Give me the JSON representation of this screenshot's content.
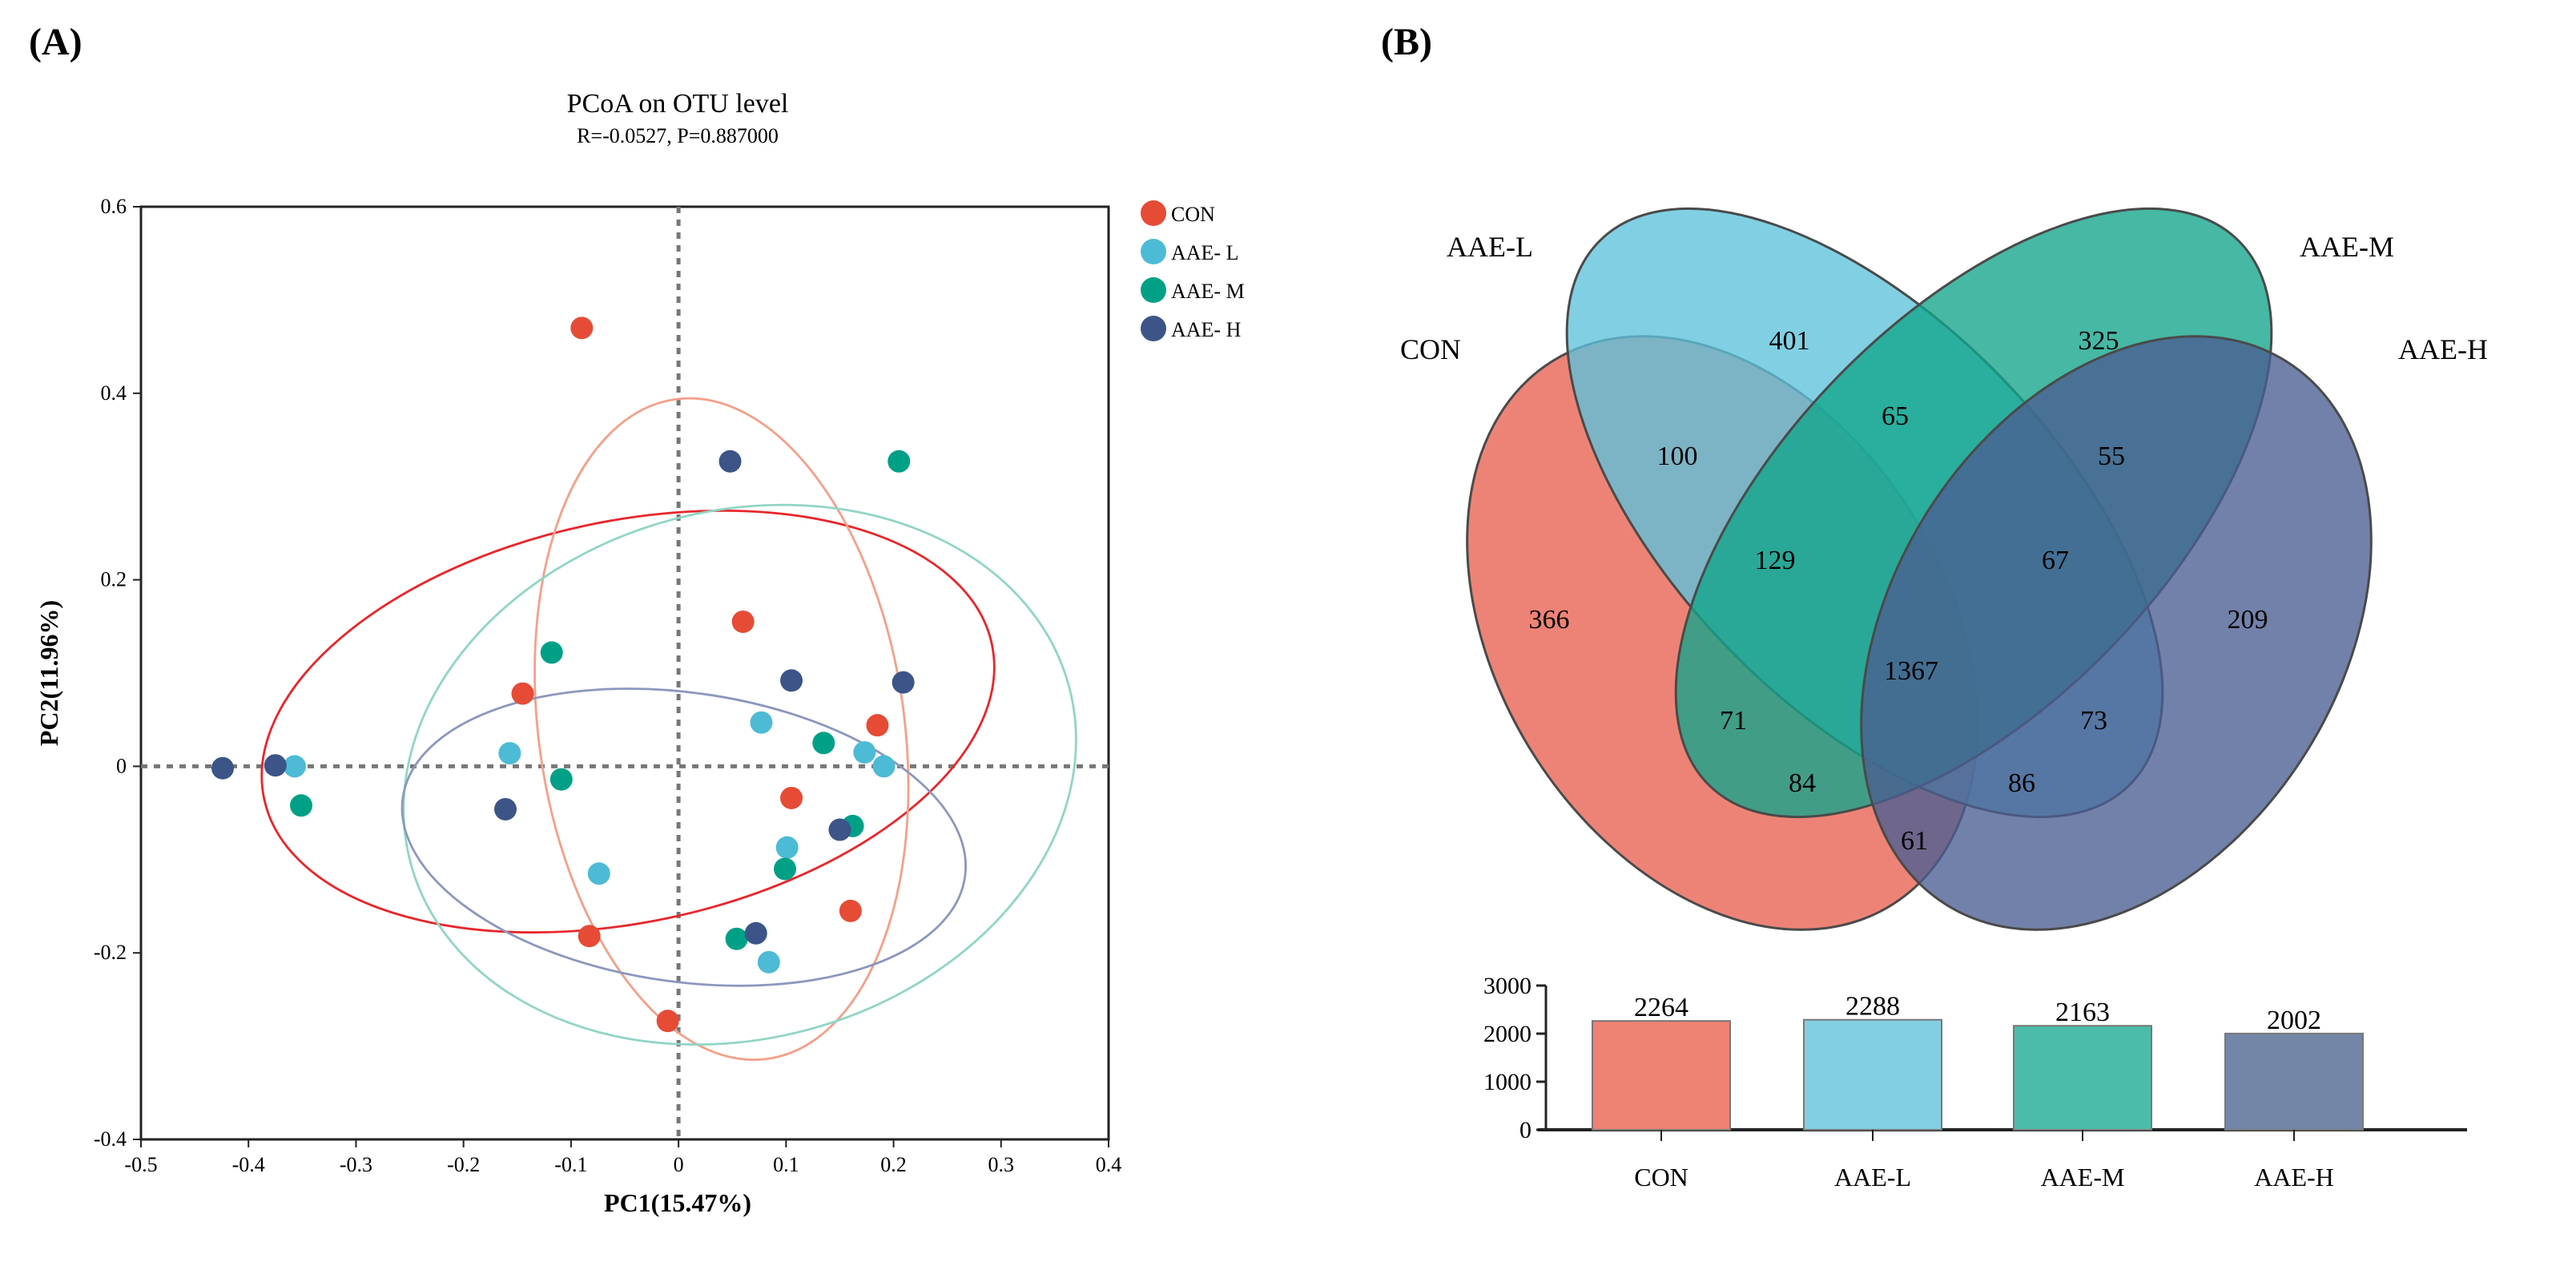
{
  "chart_data": [
    {
      "type": "scatter",
      "panel_label": "(A)",
      "title": "PCoA on OTU level",
      "subtitle": "R=-0.0527, P=0.887000",
      "xlabel": "PC1(15.47%)",
      "ylabel": "PC2(11.96%)",
      "xlim": [
        -0.5,
        0.4
      ],
      "ylim": [
        -0.4,
        0.6
      ],
      "xticks": [
        "-0.5",
        "-0.4",
        "-0.3",
        "-0.2",
        "-0.1",
        "0",
        "0.1",
        "0.2",
        "0.3",
        "0.4"
      ],
      "xtick_values": [
        -0.5,
        -0.4,
        -0.3,
        -0.2,
        -0.1,
        0,
        0.1,
        0.2,
        0.3,
        0.4
      ],
      "yticks": [
        "-0.4",
        "-0.2",
        "0",
        "0.2",
        "0.4",
        "0.6"
      ],
      "ytick_values": [
        -0.4,
        -0.2,
        0,
        0.2,
        0.4,
        0.6
      ],
      "legend_position": "right",
      "series": [
        {
          "name": "CON",
          "color": "#e64b35",
          "points": [
            [
              -0.09,
              0.47
            ],
            [
              0.06,
              0.155
            ],
            [
              -0.145,
              0.078
            ],
            [
              0.185,
              0.044
            ],
            [
              0.105,
              -0.034
            ],
            [
              0.16,
              -0.155
            ],
            [
              -0.083,
              -0.182
            ],
            [
              -0.01,
              -0.273
            ]
          ],
          "ellipses": [
            {
              "cx": -0.047,
              "cy": 0.048,
              "rx": 0.346,
              "ry": 0.215,
              "angle": -12,
              "color": "#e8262b"
            },
            {
              "cx": 0.04,
              "cy": 0.04,
              "rx": 0.17,
              "ry": 0.357,
              "angle": -8,
              "color": "#f4a08a"
            }
          ]
        },
        {
          "name": "AAE- L",
          "color": "#4dbbd5",
          "points": [
            [
              -0.357,
              0
            ],
            [
              -0.157,
              0.014
            ],
            [
              -0.074,
              -0.115
            ],
            [
              0.077,
              0.047
            ],
            [
              0.173,
              0.015
            ],
            [
              0.191,
              0
            ],
            [
              0.101,
              -0.087
            ],
            [
              0.084,
              -0.21
            ]
          ],
          "ellipses": []
        },
        {
          "name": "AAE- M",
          "color": "#00a087",
          "points": [
            [
              -0.351,
              -0.042
            ],
            [
              -0.118,
              0.122
            ],
            [
              -0.109,
              -0.014
            ],
            [
              0.205,
              0.327
            ],
            [
              0.135,
              0.025
            ],
            [
              0.162,
              -0.064
            ],
            [
              0.099,
              -0.11
            ],
            [
              0.054,
              -0.185
            ]
          ],
          "ellipses": [
            {
              "cx": 0.057,
              "cy": -0.009,
              "rx": 0.317,
              "ry": 0.283,
              "angle": -15,
              "color": "#91d5c4"
            }
          ]
        },
        {
          "name": "AAE- H",
          "color": "#3c5488",
          "points": [
            [
              -0.424,
              -0.002
            ],
            [
              -0.375,
              0.001
            ],
            [
              -0.161,
              -0.046
            ],
            [
              0.048,
              0.327
            ],
            [
              0.105,
              0.092
            ],
            [
              0.209,
              0.09
            ],
            [
              0.15,
              -0.068
            ],
            [
              0.072,
              -0.179
            ]
          ],
          "ellipses": [
            {
              "cx": 0.005,
              "cy": -0.076,
              "rx": 0.264,
              "ry": 0.155,
              "angle": 8,
              "color": "#8c97bd"
            }
          ]
        }
      ]
    },
    {
      "type": "venn",
      "panel_label": "(B)",
      "sets": [
        {
          "name": "CON",
          "color": "#e8604f"
        },
        {
          "name": "AAE-L",
          "color": "#5ec2db"
        },
        {
          "name": "AAE-M",
          "color": "#12a48b"
        },
        {
          "name": "AAE-H",
          "color": "#4a5e91"
        }
      ],
      "regions": [
        {
          "sets": [
            "CON"
          ],
          "value": 366
        },
        {
          "sets": [
            "AAE-L"
          ],
          "value": 401
        },
        {
          "sets": [
            "AAE-M"
          ],
          "value": 325
        },
        {
          "sets": [
            "AAE-H"
          ],
          "value": 209
        },
        {
          "sets": [
            "CON",
            "AAE-L"
          ],
          "value": 100
        },
        {
          "sets": [
            "AAE-L",
            "AAE-M"
          ],
          "value": 65
        },
        {
          "sets": [
            "AAE-M",
            "AAE-H"
          ],
          "value": 55
        },
        {
          "sets": [
            "CON",
            "AAE-L",
            "AAE-M"
          ],
          "value": 129
        },
        {
          "sets": [
            "AAE-L",
            "AAE-M",
            "AAE-H"
          ],
          "value": 67
        },
        {
          "sets": [
            "CON",
            "AAE-L",
            "AAE-M",
            "AAE-H"
          ],
          "value": 1367
        },
        {
          "sets": [
            "CON",
            "AAE-M"
          ],
          "value": 71
        },
        {
          "sets": [
            "AAE-L",
            "AAE-H"
          ],
          "value": 73
        },
        {
          "sets": [
            "CON",
            "AAE-M",
            "AAE-H"
          ],
          "value": 84
        },
        {
          "sets": [
            "CON",
            "AAE-L",
            "AAE-H"
          ],
          "value": 86
        },
        {
          "sets": [
            "CON",
            "AAE-H"
          ],
          "value": 61
        }
      ]
    },
    {
      "type": "bar",
      "categories": [
        "CON",
        "AAE-L",
        "AAE-M",
        "AAE-H"
      ],
      "values": [
        2264,
        2288,
        2163,
        2002
      ],
      "colors": [
        "#ee8272",
        "#83cfe2",
        "#4cbcaa",
        "#7486a8"
      ],
      "ylim": [
        0,
        3000
      ],
      "yticks": [
        "0",
        "1000",
        "2000",
        "3000"
      ],
      "ytick_values": [
        0,
        1000,
        2000,
        3000
      ]
    }
  ]
}
